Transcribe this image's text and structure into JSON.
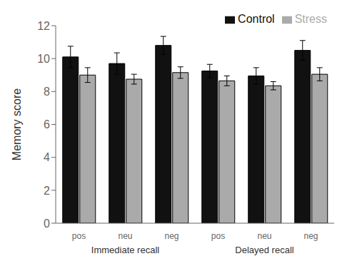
{
  "chart_data": {
    "type": "bar",
    "ylabel": "Memory score",
    "categories": [
      "pos",
      "neu",
      "neg",
      "pos",
      "neu",
      "neg"
    ],
    "groups": [
      "Immediate recall",
      "Delayed recall"
    ],
    "series": [
      {
        "name": "Control",
        "color": "#111111",
        "values": [
          10.1,
          9.7,
          10.8,
          9.25,
          8.95,
          10.5
        ],
        "errors": [
          0.65,
          0.65,
          0.55,
          0.4,
          0.5,
          0.6
        ]
      },
      {
        "name": "Stress",
        "color": "#aaaaaa",
        "values": [
          9.0,
          8.75,
          9.15,
          8.65,
          8.35,
          9.05
        ],
        "errors": [
          0.45,
          0.3,
          0.35,
          0.3,
          0.25,
          0.4
        ]
      }
    ],
    "ylim": [
      0,
      12
    ],
    "yticks": [
      0,
      2,
      4,
      6,
      8,
      10,
      12
    ],
    "legend": "upper right",
    "grid": false
  }
}
